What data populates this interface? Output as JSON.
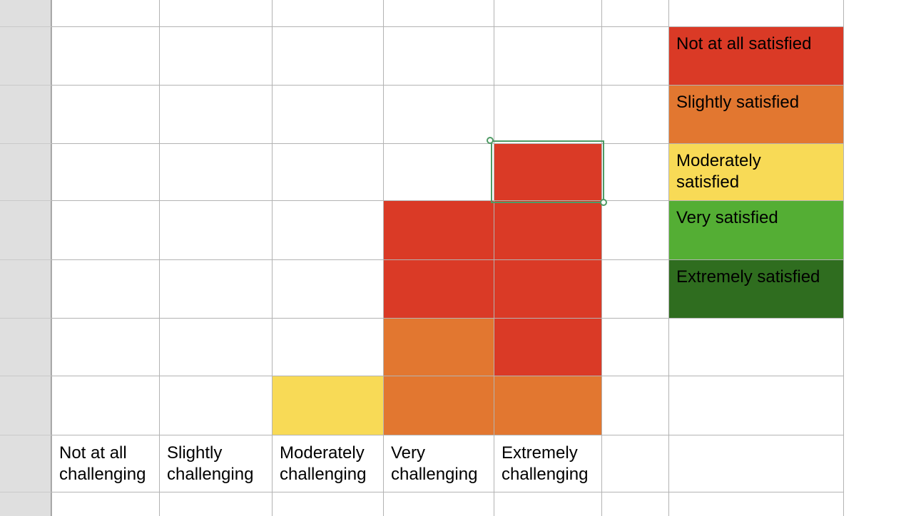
{
  "colors": {
    "not_at_all": "#da3a26",
    "slightly": "#e27730",
    "moderately": "#f8da56",
    "very": "#54ae34",
    "extremely": "#2f6d1f"
  },
  "legend": [
    {
      "label": "Not at all satisfied",
      "color": "#da3a26"
    },
    {
      "label": "Slightly satisfied",
      "color": "#e27730"
    },
    {
      "label": "Moderately\nsatisfied",
      "color": "#f8da56"
    },
    {
      "label": "Very satisfied",
      "color": "#54ae34"
    },
    {
      "label": "Extremely satisfied",
      "color": "#2f6d1f"
    }
  ],
  "columns": [
    {
      "label": "Not at all\nchallenging",
      "stack": []
    },
    {
      "label": "Slightly\nchallenging",
      "stack": []
    },
    {
      "label": "Moderately\nchallenging",
      "stack": [
        "moderately"
      ]
    },
    {
      "label": "Very\nchallenging",
      "stack": [
        "slightly",
        "slightly",
        "not_at_all",
        "not_at_all"
      ]
    },
    {
      "label": "Extremely\nchallenging",
      "stack": [
        "slightly",
        "not_at_all",
        "not_at_all",
        "not_at_all",
        "not_at_all"
      ]
    }
  ]
}
